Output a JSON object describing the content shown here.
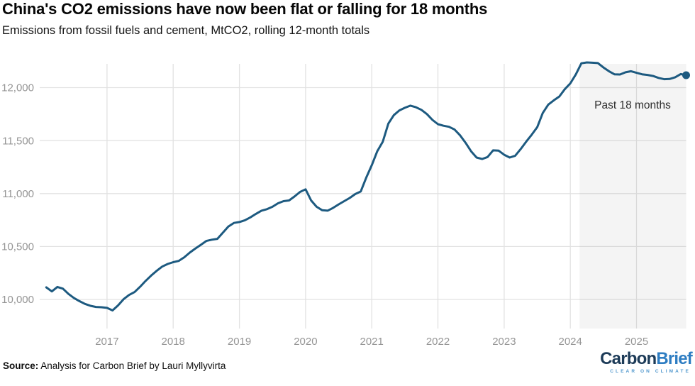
{
  "header": {
    "title": "China's CO2 emissions have now been flat or falling for 18 months",
    "subtitle": "Emissions from fossil fuels and cement, MtCO2, rolling 12-month totals"
  },
  "chart_data": {
    "type": "line",
    "title": "China's CO2 emissions have now been flat or falling for 18 months",
    "subtitle": "Emissions from fossil fuels and cement, MtCO2, rolling 12-month totals",
    "unit": "MtCO2",
    "grid": true,
    "legend_position": "none",
    "x_start_year": 2016,
    "x_start_month": 2,
    "x_frequency": "monthly",
    "xlim": [
      2016.0,
      2025.75
    ],
    "ylim": [
      9726,
      12224
    ],
    "x_tick_values": [
      2017,
      2018,
      2019,
      2020,
      2021,
      2022,
      2023,
      2024,
      2025
    ],
    "x_tick_labels": [
      "2017",
      "2018",
      "2019",
      "2020",
      "2021",
      "2022",
      "2023",
      "2024",
      "2025"
    ],
    "y_tick_values": [
      10000,
      10500,
      11000,
      11500,
      12000
    ],
    "y_tick_labels": [
      "10,000",
      "10,500",
      "11,000",
      "11,500",
      "12,000"
    ],
    "series": [
      {
        "name": "China CO2 emissions, rolling 12-month total (MtCO2)",
        "color": "#1d5a80",
        "values": [
          10114,
          10076,
          10118,
          10102,
          10052,
          10014,
          9984,
          9958,
          9940,
          9929,
          9926,
          9920,
          9896,
          9944,
          10002,
          10042,
          10070,
          10120,
          10175,
          10225,
          10270,
          10310,
          10335,
          10352,
          10364,
          10398,
          10442,
          10480,
          10515,
          10552,
          10564,
          10572,
          10630,
          10688,
          10722,
          10731,
          10748,
          10775,
          10808,
          10838,
          10852,
          10875,
          10908,
          10928,
          10935,
          10972,
          11015,
          11040,
          10935,
          10875,
          10843,
          10838,
          10865,
          10898,
          10928,
          10958,
          10995,
          11020,
          11150,
          11267,
          11400,
          11490,
          11660,
          11740,
          11785,
          11810,
          11830,
          11815,
          11790,
          11750,
          11695,
          11655,
          11640,
          11630,
          11605,
          11550,
          11480,
          11400,
          11340,
          11326,
          11345,
          11408,
          11405,
          11366,
          11340,
          11356,
          11420,
          11490,
          11556,
          11626,
          11760,
          11840,
          11880,
          11916,
          11985,
          12040,
          12125,
          12230,
          12238,
          12235,
          12232,
          12190,
          12155,
          12126,
          12124,
          12145,
          12155,
          12140,
          12126,
          12120,
          12110,
          12092,
          12080,
          12082,
          12098,
          12128,
          12117
        ]
      }
    ],
    "annotation": {
      "label": "Past 18 months",
      "band": [
        2024.14,
        2025.75
      ]
    },
    "end_dot": true,
    "colors": {
      "line": "#1d5a80",
      "grid": "#e2e2e2",
      "tick_text": "#959595",
      "band": "rgba(130,130,130,0.09)",
      "annotation_text": "#2e2e2e"
    }
  },
  "footer": {
    "source_label": "Source:",
    "source_text": " Analysis for Carbon Brief by Lauri Myllyvirta"
  },
  "logo": {
    "part1": "Carbon",
    "part2": "Brief",
    "tagline": "CLEAR ON CLIMATE",
    "color_carbon": "#1d3b58",
    "color_brief": "#2e7dc2",
    "color_tagline": "#4f97cd"
  }
}
